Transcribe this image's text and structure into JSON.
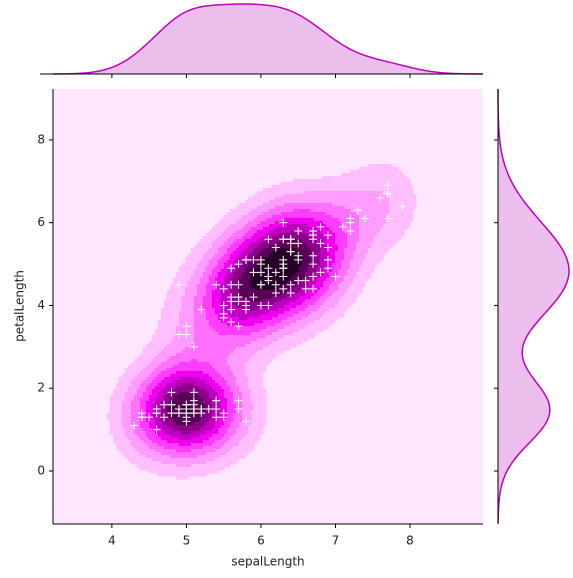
{
  "chart_data": {
    "type": "scatter",
    "x_label": "sepalLength",
    "y_label": "petalLength",
    "x": [
      5.1,
      4.9,
      4.7,
      4.6,
      5.0,
      5.4,
      4.6,
      5.0,
      4.4,
      4.9,
      5.4,
      4.8,
      4.8,
      4.3,
      5.8,
      5.7,
      5.4,
      5.1,
      5.7,
      5.1,
      5.4,
      5.1,
      4.6,
      5.1,
      4.8,
      5.0,
      5.0,
      5.2,
      5.2,
      4.7,
      4.8,
      5.4,
      5.2,
      5.5,
      4.9,
      5.0,
      5.5,
      4.9,
      4.4,
      5.1,
      5.0,
      4.5,
      4.4,
      5.0,
      5.1,
      4.8,
      5.1,
      4.6,
      5.3,
      5.0,
      7.0,
      6.4,
      6.9,
      5.5,
      6.5,
      5.7,
      6.3,
      4.9,
      6.6,
      5.2,
      5.0,
      5.9,
      6.0,
      6.1,
      5.6,
      6.7,
      5.6,
      5.8,
      6.2,
      5.6,
      5.9,
      6.1,
      6.3,
      6.1,
      6.4,
      6.6,
      6.8,
      6.7,
      6.0,
      5.7,
      5.5,
      5.5,
      5.8,
      6.0,
      5.4,
      6.0,
      6.7,
      6.3,
      5.6,
      5.5,
      5.5,
      6.1,
      5.8,
      5.0,
      5.6,
      5.7,
      5.7,
      6.2,
      5.1,
      5.7,
      6.3,
      5.8,
      7.1,
      6.3,
      6.5,
      7.6,
      4.9,
      7.3,
      6.7,
      7.2,
      6.5,
      6.4,
      6.8,
      5.7,
      5.8,
      6.4,
      6.5,
      7.7,
      7.7,
      6.0,
      6.9,
      5.6,
      7.7,
      6.3,
      6.7,
      7.2,
      6.2,
      6.1,
      6.4,
      7.2,
      7.4,
      7.9,
      6.4,
      6.3,
      6.1,
      7.7,
      6.3,
      6.4,
      6.0,
      6.9,
      6.7,
      6.9,
      5.8,
      6.8,
      6.7,
      6.7,
      6.3,
      6.5,
      6.2,
      5.9
    ],
    "y": [
      1.4,
      1.4,
      1.3,
      1.5,
      1.4,
      1.7,
      1.4,
      1.5,
      1.4,
      1.5,
      1.5,
      1.6,
      1.4,
      1.1,
      1.2,
      1.5,
      1.3,
      1.4,
      1.7,
      1.5,
      1.7,
      1.5,
      1.0,
      1.7,
      1.9,
      1.6,
      1.6,
      1.5,
      1.4,
      1.6,
      1.6,
      1.5,
      1.5,
      1.4,
      1.5,
      1.2,
      1.3,
      1.4,
      1.3,
      1.5,
      1.3,
      1.3,
      1.3,
      1.6,
      1.9,
      1.4,
      1.6,
      1.4,
      1.5,
      1.4,
      4.7,
      4.5,
      4.9,
      4.0,
      4.6,
      4.5,
      4.7,
      3.3,
      4.6,
      3.9,
      3.5,
      4.2,
      4.0,
      4.7,
      3.6,
      4.4,
      4.5,
      4.1,
      4.5,
      3.9,
      4.8,
      4.0,
      4.9,
      4.7,
      4.3,
      4.4,
      4.8,
      5.0,
      4.5,
      3.5,
      3.8,
      3.7,
      3.9,
      5.1,
      4.5,
      4.5,
      4.7,
      4.4,
      4.1,
      4.0,
      4.4,
      4.6,
      4.0,
      3.3,
      4.2,
      4.2,
      4.2,
      4.3,
      3.0,
      4.1,
      6.0,
      5.1,
      5.9,
      5.6,
      5.8,
      6.6,
      4.5,
      6.3,
      5.8,
      6.1,
      5.1,
      5.3,
      5.5,
      5.0,
      5.1,
      5.3,
      5.5,
      6.7,
      6.9,
      5.0,
      5.7,
      4.9,
      6.7,
      4.9,
      5.7,
      6.0,
      4.8,
      4.9,
      5.6,
      5.8,
      6.1,
      6.4,
      5.6,
      5.1,
      5.6,
      6.1,
      5.6,
      5.5,
      4.8,
      5.4,
      5.6,
      5.1,
      5.1,
      5.9,
      5.7,
      5.2,
      5.0,
      5.2,
      5.4,
      5.1
    ],
    "xlim": [
      3.21,
      8.98
    ],
    "ylim": [
      -1.28,
      9.23
    ],
    "xticks": [
      4,
      5,
      6,
      7,
      8
    ],
    "yticks": [
      0,
      2,
      4,
      6,
      8
    ],
    "marker_color": "#ffffff",
    "marginal_color": "#c000c0",
    "marginal_fill": "#ecbeec",
    "cmap": [
      "#ffe6ff",
      "#ffbfff",
      "#ff9cff",
      "#ff70ff",
      "#ff3cff",
      "#f000f0",
      "#c000c0",
      "#8c008c",
      "#580058",
      "#260026"
    ]
  }
}
